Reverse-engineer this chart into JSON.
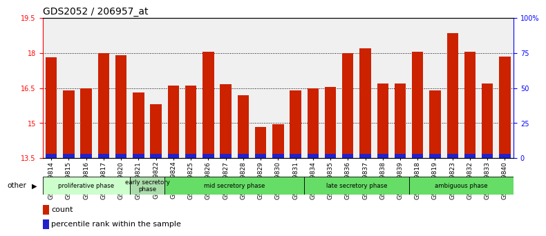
{
  "title": "GDS2052 / 206957_at",
  "samples": [
    "GSM109814",
    "GSM109815",
    "GSM109816",
    "GSM109817",
    "GSM109820",
    "GSM109821",
    "GSM109822",
    "GSM109824",
    "GSM109825",
    "GSM109826",
    "GSM109827",
    "GSM109828",
    "GSM109829",
    "GSM109830",
    "GSM109831",
    "GSM109834",
    "GSM109835",
    "GSM109836",
    "GSM109837",
    "GSM109838",
    "GSM109839",
    "GSM109818",
    "GSM109819",
    "GSM109823",
    "GSM109832",
    "GSM109833",
    "GSM109840"
  ],
  "red_values": [
    17.8,
    16.4,
    16.5,
    18.0,
    17.9,
    16.3,
    15.8,
    16.6,
    16.6,
    18.05,
    16.65,
    16.2,
    14.85,
    14.95,
    16.4,
    16.5,
    16.55,
    18.0,
    18.2,
    16.7,
    16.7,
    18.05,
    16.4,
    18.85,
    18.05,
    16.7,
    17.85
  ],
  "blue_values": [
    0.19,
    0.19,
    0.19,
    0.19,
    0.19,
    0.19,
    0.19,
    0.19,
    0.19,
    0.19,
    0.19,
    0.19,
    0.19,
    0.19,
    0.19,
    0.19,
    0.19,
    0.19,
    0.19,
    0.19,
    0.19,
    0.19,
    0.19,
    0.19,
    0.19,
    0.19,
    0.19
  ],
  "ymin": 13.5,
  "ymax": 19.5,
  "yticks": [
    13.5,
    15.0,
    16.5,
    18.0,
    19.5
  ],
  "ytick_labels": [
    "13.5",
    "15",
    "16.5",
    "18",
    "19.5"
  ],
  "right_yticks": [
    0,
    25,
    50,
    75,
    100
  ],
  "right_ytick_labels": [
    "0",
    "25",
    "50",
    "75",
    "100%"
  ],
  "phases": [
    {
      "label": "proliferative phase",
      "start": 0,
      "end": 5,
      "color": "#ccffcc"
    },
    {
      "label": "early secretory\nphase",
      "start": 5,
      "end": 7,
      "color": "#aaddaa"
    },
    {
      "label": "mid secretory phase",
      "start": 7,
      "end": 15,
      "color": "#66dd66"
    },
    {
      "label": "late secretory phase",
      "start": 15,
      "end": 21,
      "color": "#66dd66"
    },
    {
      "label": "ambiguous phase",
      "start": 21,
      "end": 27,
      "color": "#66dd66"
    }
  ],
  "bar_color": "#cc2200",
  "blue_color": "#2222cc",
  "plot_bg": "#f0f0f0",
  "title_fontsize": 10,
  "tick_fontsize": 7,
  "label_fontsize": 6.5
}
